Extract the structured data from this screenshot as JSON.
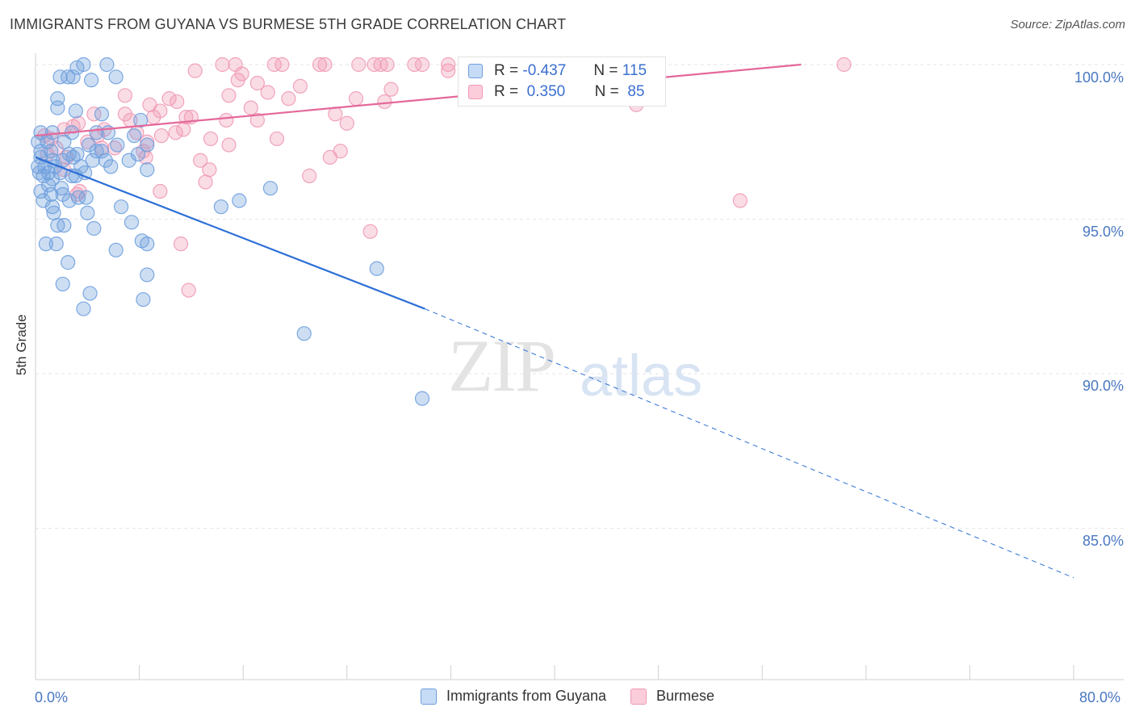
{
  "title": "IMMIGRANTS FROM GUYANA VS BURMESE 5TH GRADE CORRELATION CHART",
  "source": "Source: ZipAtlas.com",
  "watermark": {
    "zip": "ZIP",
    "atlas": "atlas"
  },
  "legend_top": {
    "row1": {
      "r_label": "R =",
      "r_value": "-0.437",
      "n_label": "N =",
      "n_value": "115"
    },
    "row2": {
      "r_label": "R =",
      "r_value": "0.350",
      "n_label": "N =",
      "n_value": "85"
    }
  },
  "legend_bottom": {
    "series1": "Immigrants from Guyana",
    "series2": "Burmese"
  },
  "colors": {
    "blue": "#6fa0de",
    "blue_line": "#2c6fd6",
    "pink": "#f09ab5",
    "pink_line": "#e4689a",
    "tick_text": "#4a78c2"
  },
  "chart_data": {
    "type": "scatter",
    "xlabel": "",
    "ylabel": "5th Grade",
    "xlim": [
      0.0,
      80.0
    ],
    "ylim": [
      80.5,
      100.6
    ],
    "x_tick_labels": [
      "0.0%",
      "80.0%"
    ],
    "y_ticks": [
      100.0,
      95.0,
      90.0,
      85.0
    ],
    "y_tick_labels": [
      "100.0%",
      "95.0%",
      "90.0%",
      "85.0%"
    ],
    "grid": true,
    "legend_placement": "top-center",
    "series": [
      {
        "name": "Immigrants from Guyana",
        "r": -0.437,
        "n": 115,
        "trend": {
          "solid": [
            [
              0.0,
              97.0
            ],
            [
              30.0,
              92.1
            ]
          ],
          "dashed": [
            [
              30.0,
              92.1
            ],
            [
              80.0,
              83.4
            ]
          ]
        },
        "points": [
          [
            3.7,
            100.0
          ],
          [
            5.5,
            100.0
          ],
          [
            3.2,
            99.9
          ],
          [
            2.5,
            99.6
          ],
          [
            1.9,
            99.6
          ],
          [
            2.9,
            99.6
          ],
          [
            4.3,
            99.5
          ],
          [
            6.2,
            99.6
          ],
          [
            1.7,
            98.9
          ],
          [
            1.7,
            98.6
          ],
          [
            3.1,
            98.5
          ],
          [
            5.1,
            98.4
          ],
          [
            8.1,
            98.2
          ],
          [
            0.4,
            97.8
          ],
          [
            1.3,
            97.8
          ],
          [
            2.8,
            97.8
          ],
          [
            4.7,
            97.8
          ],
          [
            5.6,
            97.8
          ],
          [
            7.6,
            97.7
          ],
          [
            0.2,
            97.5
          ],
          [
            0.9,
            97.5
          ],
          [
            2.2,
            97.5
          ],
          [
            4.1,
            97.4
          ],
          [
            6.3,
            97.4
          ],
          [
            8.6,
            97.4
          ],
          [
            0.4,
            97.2
          ],
          [
            1.2,
            97.2
          ],
          [
            2.6,
            97.1
          ],
          [
            3.2,
            97.1
          ],
          [
            4.7,
            97.2
          ],
          [
            5.1,
            97.2
          ],
          [
            7.9,
            97.1
          ],
          [
            0.4,
            97.0
          ],
          [
            1.3,
            96.9
          ],
          [
            2.1,
            96.9
          ],
          [
            2.9,
            97.0
          ],
          [
            4.4,
            96.9
          ],
          [
            5.4,
            96.9
          ],
          [
            7.2,
            96.9
          ],
          [
            0.2,
            96.7
          ],
          [
            0.7,
            96.7
          ],
          [
            1.5,
            96.7
          ],
          [
            3.5,
            96.7
          ],
          [
            5.8,
            96.7
          ],
          [
            8.6,
            96.6
          ],
          [
            0.3,
            96.5
          ],
          [
            1.0,
            96.5
          ],
          [
            1.9,
            96.5
          ],
          [
            3.1,
            96.4
          ],
          [
            3.8,
            96.5
          ],
          [
            0.6,
            96.4
          ],
          [
            1.3,
            96.3
          ],
          [
            2.8,
            96.4
          ],
          [
            1.0,
            96.1
          ],
          [
            2.0,
            96.0
          ],
          [
            18.1,
            96.0
          ],
          [
            0.4,
            95.9
          ],
          [
            1.2,
            95.8
          ],
          [
            2.1,
            95.8
          ],
          [
            3.3,
            95.7
          ],
          [
            3.9,
            95.7
          ],
          [
            0.6,
            95.6
          ],
          [
            2.6,
            95.6
          ],
          [
            15.7,
            95.6
          ],
          [
            1.3,
            95.4
          ],
          [
            6.6,
            95.4
          ],
          [
            14.3,
            95.4
          ],
          [
            1.4,
            95.2
          ],
          [
            4.0,
            95.2
          ],
          [
            7.4,
            94.9
          ],
          [
            1.7,
            94.8
          ],
          [
            2.2,
            94.8
          ],
          [
            4.5,
            94.7
          ],
          [
            8.2,
            94.3
          ],
          [
            0.8,
            94.2
          ],
          [
            1.6,
            94.2
          ],
          [
            8.6,
            94.2
          ],
          [
            6.2,
            94.0
          ],
          [
            2.5,
            93.6
          ],
          [
            26.3,
            93.4
          ],
          [
            8.6,
            93.2
          ],
          [
            2.1,
            92.9
          ],
          [
            4.2,
            92.6
          ],
          [
            8.3,
            92.4
          ],
          [
            3.7,
            92.1
          ],
          [
            20.7,
            91.3
          ],
          [
            29.8,
            89.2
          ]
        ]
      },
      {
        "name": "Burmese",
        "r": 0.35,
        "n": 85,
        "trend": {
          "solid": [
            [
              0.0,
              97.7
            ],
            [
              59.0,
              100.0
            ]
          ]
        },
        "points": [
          [
            14.4,
            100.0
          ],
          [
            15.4,
            100.0
          ],
          [
            18.4,
            100.0
          ],
          [
            19.0,
            100.0
          ],
          [
            21.9,
            100.0
          ],
          [
            22.3,
            100.0
          ],
          [
            24.9,
            100.0
          ],
          [
            26.1,
            100.0
          ],
          [
            26.6,
            100.0
          ],
          [
            27.1,
            100.0
          ],
          [
            29.2,
            100.0
          ],
          [
            29.8,
            100.0
          ],
          [
            31.8,
            100.0
          ],
          [
            34.2,
            100.0
          ],
          [
            62.3,
            100.0
          ],
          [
            12.3,
            99.8
          ],
          [
            15.9,
            99.7
          ],
          [
            31.8,
            99.8
          ],
          [
            15.6,
            99.5
          ],
          [
            17.1,
            99.4
          ],
          [
            20.4,
            99.3
          ],
          [
            27.4,
            99.2
          ],
          [
            17.9,
            99.1
          ],
          [
            14.9,
            99.0
          ],
          [
            6.9,
            99.0
          ],
          [
            10.3,
            98.9
          ],
          [
            19.5,
            98.9
          ],
          [
            24.7,
            98.9
          ],
          [
            8.8,
            98.7
          ],
          [
            10.9,
            98.8
          ],
          [
            26.9,
            98.8
          ],
          [
            46.3,
            98.7
          ],
          [
            16.6,
            98.6
          ],
          [
            9.6,
            98.5
          ],
          [
            6.9,
            98.4
          ],
          [
            4.5,
            98.4
          ],
          [
            23.1,
            98.4
          ],
          [
            9.1,
            98.3
          ],
          [
            11.6,
            98.3
          ],
          [
            12.0,
            98.3
          ],
          [
            7.3,
            98.2
          ],
          [
            17.1,
            98.2
          ],
          [
            14.7,
            98.2
          ],
          [
            3.3,
            98.1
          ],
          [
            24.0,
            98.1
          ],
          [
            2.2,
            97.9
          ],
          [
            2.9,
            98.0
          ],
          [
            5.3,
            97.9
          ],
          [
            7.8,
            97.8
          ],
          [
            10.8,
            97.8
          ],
          [
            11.4,
            97.9
          ],
          [
            0.7,
            97.7
          ],
          [
            4.8,
            97.7
          ],
          [
            9.7,
            97.7
          ],
          [
            1.2,
            97.6
          ],
          [
            13.5,
            97.6
          ],
          [
            18.6,
            97.6
          ],
          [
            4.0,
            97.5
          ],
          [
            8.6,
            97.5
          ],
          [
            14.9,
            97.4
          ],
          [
            1.6,
            97.3
          ],
          [
            5.1,
            97.3
          ],
          [
            6.1,
            97.3
          ],
          [
            8.3,
            97.2
          ],
          [
            23.5,
            97.2
          ],
          [
            0.9,
            97.1
          ],
          [
            2.4,
            97.0
          ],
          [
            8.5,
            97.0
          ],
          [
            22.7,
            97.0
          ],
          [
            12.7,
            96.9
          ],
          [
            2.2,
            96.6
          ],
          [
            13.4,
            96.6
          ],
          [
            21.1,
            96.4
          ],
          [
            13.1,
            96.2
          ],
          [
            3.4,
            95.9
          ],
          [
            9.6,
            95.9
          ],
          [
            3.2,
            95.8
          ],
          [
            54.3,
            95.6
          ],
          [
            25.8,
            94.6
          ],
          [
            11.2,
            94.2
          ],
          [
            11.8,
            92.7
          ]
        ]
      }
    ]
  }
}
